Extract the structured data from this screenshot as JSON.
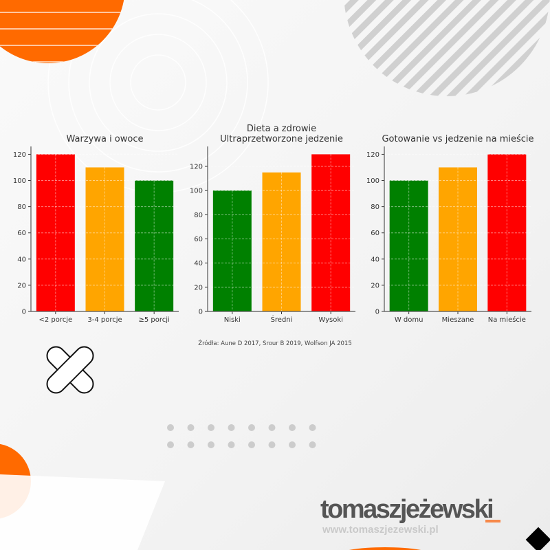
{
  "chart_data": [
    {
      "type": "bar",
      "title": "Warzywa i owoce",
      "categories": [
        "<2 porcje",
        "3-4 porcje",
        "≥5 porcji"
      ],
      "values": [
        120,
        110,
        100
      ],
      "colors": [
        "#ff0000",
        "#ffa500",
        "#008000"
      ],
      "yticks": [
        0,
        20,
        40,
        60,
        80,
        100,
        120
      ],
      "ylim": [
        0,
        126
      ],
      "grid": true,
      "xlabel": "",
      "ylabel": ""
    },
    {
      "type": "bar",
      "title": "Dieta a zdrowie\nUltraprzetworzone jedzenie",
      "title_lines": [
        "Dieta a zdrowie",
        "Ultraprzetworzone jedzenie"
      ],
      "categories": [
        "Niski",
        "Średni",
        "Wysoki"
      ],
      "values": [
        100,
        115,
        130
      ],
      "colors": [
        "#008000",
        "#ffa500",
        "#ff0000"
      ],
      "yticks": [
        0,
        20,
        40,
        60,
        80,
        100,
        120
      ],
      "ylim": [
        0,
        136.5
      ],
      "grid": true,
      "xlabel": "",
      "ylabel": ""
    },
    {
      "type": "bar",
      "title": "Gotowanie vs jedzenie na mieście",
      "categories": [
        "W domu",
        "Mieszane",
        "Na mieście"
      ],
      "values": [
        100,
        110,
        120
      ],
      "colors": [
        "#008000",
        "#ffa500",
        "#ff0000"
      ],
      "yticks": [
        0,
        20,
        40,
        60,
        80,
        100,
        120
      ],
      "ylim": [
        0,
        126
      ],
      "grid": true,
      "xlabel": "",
      "ylabel": ""
    }
  ],
  "source": "Źródła: Aune D 2017, Srour B 2019, Wolfson JA 2015",
  "brand": {
    "name": "tomaszjeżewski",
    "url": "www.tomaszjezewski.pl",
    "accent": "#ff6a00"
  }
}
